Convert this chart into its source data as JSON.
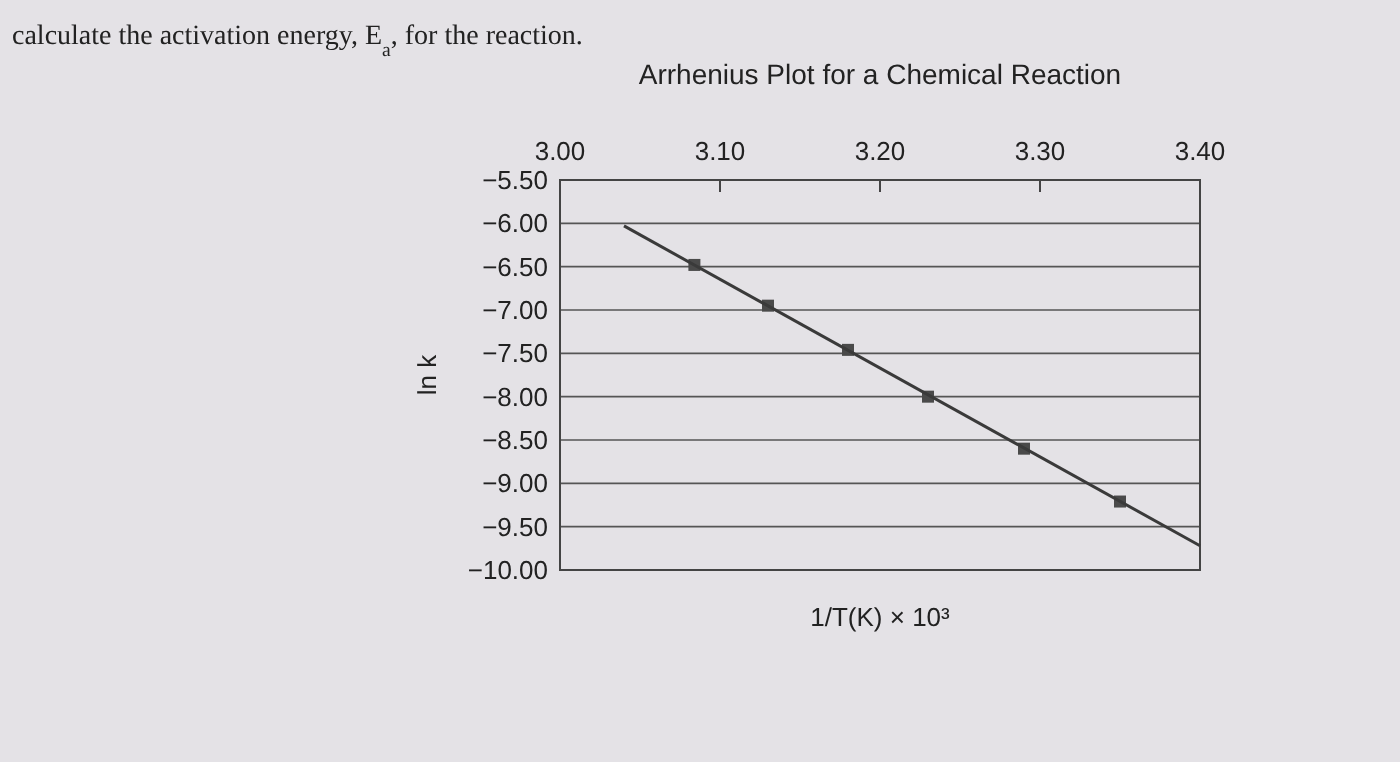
{
  "chart_data": {
    "type": "scatter",
    "title": "Arrhenius Plot for a Chemical Reaction",
    "xlabel": "1/T(K) × 10³",
    "ylabel": "ln k",
    "annotations": [
      "calculate the activation energy, E$_{a}$, for the reaction."
    ],
    "xlim": [
      3.0,
      3.4
    ],
    "xticks": [
      {
        "value": 3.0,
        "label": "3.00"
      },
      {
        "value": 3.1,
        "label": "3.10"
      },
      {
        "value": 3.2,
        "label": "3.20"
      },
      {
        "value": 3.3,
        "label": "3.30"
      },
      {
        "value": 3.4,
        "label": "3.40"
      }
    ],
    "ylim": [
      -10,
      -5.5
    ],
    "yticks": [
      {
        "value": -5.5,
        "label": "−5.50"
      },
      {
        "value": -6,
        "label": "−6.00"
      },
      {
        "value": -6.5,
        "label": "−6.50"
      },
      {
        "value": -7,
        "label": "−7.00"
      },
      {
        "value": -7.5,
        "label": "−7.50"
      },
      {
        "value": -8,
        "label": "−8.00"
      },
      {
        "value": -8.5,
        "label": "−8.50"
      },
      {
        "value": -9,
        "label": "−9.00"
      },
      {
        "value": -9.5,
        "label": "−9.50"
      },
      {
        "value": -10,
        "label": "−10.00"
      }
    ],
    "grid": "y",
    "series": [
      {
        "color": "#4a4a4a",
        "marker": "square",
        "x": [
          3.084,
          3.13,
          3.18,
          3.23,
          3.29,
          3.35
        ],
        "values": [
          -6.48,
          -6.95,
          -7.46,
          -8.0,
          -8.6,
          -9.21
        ]
      },
      {
        "type": "line",
        "color": "#3a3a3a",
        "marker": "none",
        "line_style": "solid",
        "x": [
          3.04,
          3.4
        ],
        "values": [
          -6.03,
          -9.72
        ]
      }
    ]
  }
}
